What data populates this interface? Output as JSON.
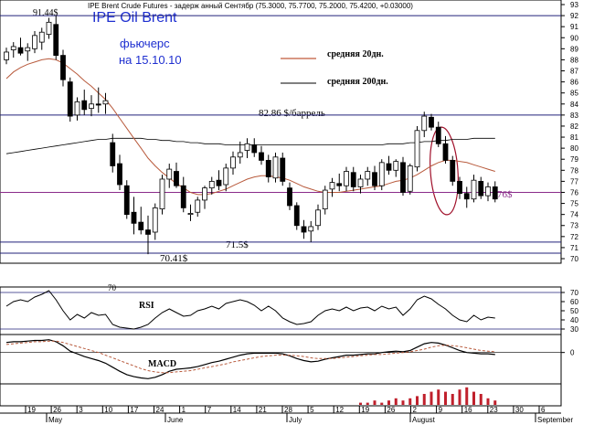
{
  "header": {
    "small": "IPE Brent Crude Futures - задерж анный Сентябр (75.3000, 75.7700, 75.2000, 75.4200, +0.03000)",
    "big": "IPE Oil Brent",
    "sub1": "фьючерс",
    "sub2": "на 15.10.10"
  },
  "legend": {
    "ma20": "средняя 20дн.",
    "ma200": "средняя 200дн."
  },
  "annotations": {
    "a1": "91.44$",
    "a2": "82.86 $/баррель",
    "a3": "76$",
    "a4": "71.5$",
    "a5": "70.41$",
    "a6": "70"
  },
  "colors": {
    "candle": "#000000",
    "ma20": "#b85a3c",
    "ma200": "#000000",
    "level_navy": "#22207a",
    "level_purple": "#8a2c8a",
    "ellipse": "#a0102a",
    "big_title": "#1e2fd0",
    "legend_line": "#c05a3a",
    "volume": "#c0202c"
  },
  "chart_data": {
    "type": "candlestick",
    "title": "IPE Brent Crude Futures",
    "price_axis": {
      "range": [
        69,
        93
      ],
      "ticks": [
        "93",
        "92",
        "91",
        "90",
        "89",
        "88",
        "87",
        "86",
        "85",
        "84",
        "83",
        "82",
        "81",
        "80",
        "79",
        "78",
        "77",
        "76",
        "75",
        "74",
        "73",
        "72",
        "71",
        "70"
      ]
    },
    "x_tick_labels": [
      "19",
      "26",
      "3",
      "10",
      "17",
      "24",
      "1",
      "7",
      "14",
      "21",
      "28",
      "5",
      "12",
      "19",
      "26",
      "2",
      "9",
      "16",
      "23",
      "30",
      "6"
    ],
    "month_labels": [
      "May",
      "June",
      "July",
      "August",
      "September"
    ],
    "levels": [
      92,
      83,
      76,
      71.5,
      70.5
    ],
    "candles": [
      {
        "o": 88.0,
        "h": 89.1,
        "l": 87.6,
        "c": 88.7
      },
      {
        "o": 88.9,
        "h": 89.6,
        "l": 88.2,
        "c": 89.2
      },
      {
        "o": 89.1,
        "h": 90.0,
        "l": 88.4,
        "c": 88.6
      },
      {
        "o": 88.8,
        "h": 89.5,
        "l": 87.9,
        "c": 89.1
      },
      {
        "o": 89.0,
        "h": 90.6,
        "l": 88.6,
        "c": 90.2
      },
      {
        "o": 89.6,
        "h": 90.9,
        "l": 88.9,
        "c": 90.5
      },
      {
        "o": 90.3,
        "h": 91.8,
        "l": 89.9,
        "c": 91.4
      },
      {
        "o": 91.2,
        "h": 92.0,
        "l": 88.0,
        "c": 88.4
      },
      {
        "o": 88.4,
        "h": 88.9,
        "l": 85.6,
        "c": 86.2
      },
      {
        "o": 86.0,
        "h": 86.4,
        "l": 82.4,
        "c": 82.9
      },
      {
        "o": 83.0,
        "h": 84.6,
        "l": 82.5,
        "c": 84.2
      },
      {
        "o": 84.3,
        "h": 85.3,
        "l": 83.0,
        "c": 83.5
      },
      {
        "o": 83.6,
        "h": 84.8,
        "l": 82.9,
        "c": 84.0
      },
      {
        "o": 84.0,
        "h": 85.5,
        "l": 83.2,
        "c": 83.9
      },
      {
        "o": 84.0,
        "h": 85.0,
        "l": 83.1,
        "c": 84.3
      },
      {
        "o": 80.5,
        "h": 81.3,
        "l": 77.8,
        "c": 78.4
      },
      {
        "o": 78.6,
        "h": 79.4,
        "l": 76.2,
        "c": 76.7
      },
      {
        "o": 76.6,
        "h": 77.1,
        "l": 73.6,
        "c": 74.0
      },
      {
        "o": 74.2,
        "h": 75.6,
        "l": 72.2,
        "c": 73.2
      },
      {
        "o": 73.3,
        "h": 74.7,
        "l": 72.2,
        "c": 72.6
      },
      {
        "o": 72.6,
        "h": 73.9,
        "l": 70.4,
        "c": 72.2
      },
      {
        "o": 72.4,
        "h": 75.0,
        "l": 71.7,
        "c": 74.6
      },
      {
        "o": 74.5,
        "h": 77.6,
        "l": 74.0,
        "c": 77.2
      },
      {
        "o": 77.2,
        "h": 78.6,
        "l": 76.4,
        "c": 78.1
      },
      {
        "o": 77.9,
        "h": 78.7,
        "l": 76.4,
        "c": 76.6
      },
      {
        "o": 76.6,
        "h": 77.4,
        "l": 74.2,
        "c": 74.6
      },
      {
        "o": 74.0,
        "h": 74.9,
        "l": 73.4,
        "c": 74.1
      },
      {
        "o": 74.2,
        "h": 75.6,
        "l": 73.8,
        "c": 75.3
      },
      {
        "o": 75.3,
        "h": 76.6,
        "l": 74.5,
        "c": 76.4
      },
      {
        "o": 76.4,
        "h": 77.4,
        "l": 75.8,
        "c": 77.0
      },
      {
        "o": 77.1,
        "h": 78.0,
        "l": 76.2,
        "c": 76.6
      },
      {
        "o": 76.7,
        "h": 78.6,
        "l": 76.1,
        "c": 78.2
      },
      {
        "o": 78.2,
        "h": 79.7,
        "l": 77.6,
        "c": 79.2
      },
      {
        "o": 79.2,
        "h": 80.6,
        "l": 78.6,
        "c": 79.6
      },
      {
        "o": 79.8,
        "h": 80.9,
        "l": 79.1,
        "c": 80.4
      },
      {
        "o": 80.3,
        "h": 80.9,
        "l": 79.2,
        "c": 79.6
      },
      {
        "o": 79.6,
        "h": 80.2,
        "l": 78.5,
        "c": 78.9
      },
      {
        "o": 78.9,
        "h": 79.4,
        "l": 76.9,
        "c": 77.4
      },
      {
        "o": 77.3,
        "h": 79.6,
        "l": 76.9,
        "c": 79.2
      },
      {
        "o": 79.1,
        "h": 79.6,
        "l": 76.6,
        "c": 77.0
      },
      {
        "o": 76.4,
        "h": 76.9,
        "l": 74.4,
        "c": 74.8
      },
      {
        "o": 74.8,
        "h": 75.1,
        "l": 72.6,
        "c": 73.0
      },
      {
        "o": 72.9,
        "h": 73.5,
        "l": 71.8,
        "c": 72.4
      },
      {
        "o": 72.5,
        "h": 73.4,
        "l": 71.5,
        "c": 72.9
      },
      {
        "o": 73.0,
        "h": 74.9,
        "l": 72.6,
        "c": 74.4
      },
      {
        "o": 74.5,
        "h": 76.6,
        "l": 74.0,
        "c": 76.2
      },
      {
        "o": 76.3,
        "h": 77.3,
        "l": 75.6,
        "c": 76.9
      },
      {
        "o": 76.8,
        "h": 77.7,
        "l": 76.1,
        "c": 76.6
      },
      {
        "o": 76.6,
        "h": 78.3,
        "l": 76.1,
        "c": 77.9
      },
      {
        "o": 77.8,
        "h": 78.3,
        "l": 76.1,
        "c": 76.5
      },
      {
        "o": 76.5,
        "h": 77.6,
        "l": 75.9,
        "c": 77.2
      },
      {
        "o": 77.2,
        "h": 78.3,
        "l": 76.6,
        "c": 77.9
      },
      {
        "o": 77.8,
        "h": 78.4,
        "l": 76.2,
        "c": 76.6
      },
      {
        "o": 76.6,
        "h": 79.0,
        "l": 76.2,
        "c": 78.7
      },
      {
        "o": 78.6,
        "h": 79.3,
        "l": 77.6,
        "c": 78.0
      },
      {
        "o": 78.0,
        "h": 79.0,
        "l": 77.4,
        "c": 78.8
      },
      {
        "o": 78.7,
        "h": 79.2,
        "l": 75.7,
        "c": 76.0
      },
      {
        "o": 76.1,
        "h": 78.6,
        "l": 75.8,
        "c": 78.4
      },
      {
        "o": 78.3,
        "h": 82.0,
        "l": 77.9,
        "c": 81.6
      },
      {
        "o": 81.6,
        "h": 83.3,
        "l": 81.0,
        "c": 82.9
      },
      {
        "o": 82.8,
        "h": 83.1,
        "l": 81.6,
        "c": 81.9
      },
      {
        "o": 81.9,
        "h": 82.4,
        "l": 80.1,
        "c": 80.4
      },
      {
        "o": 80.4,
        "h": 81.1,
        "l": 78.6,
        "c": 78.9
      },
      {
        "o": 78.9,
        "h": 79.3,
        "l": 76.6,
        "c": 77.0
      },
      {
        "o": 77.0,
        "h": 77.4,
        "l": 75.4,
        "c": 75.9
      },
      {
        "o": 75.9,
        "h": 76.5,
        "l": 74.6,
        "c": 75.4
      },
      {
        "o": 75.4,
        "h": 77.6,
        "l": 75.1,
        "c": 77.1
      },
      {
        "o": 77.0,
        "h": 77.4,
        "l": 75.4,
        "c": 75.7
      },
      {
        "o": 75.7,
        "h": 76.9,
        "l": 75.2,
        "c": 76.5
      },
      {
        "o": 76.5,
        "h": 77.0,
        "l": 75.1,
        "c": 75.4
      }
    ],
    "ma20": [
      86.3,
      86.9,
      87.3,
      87.6,
      87.8,
      88.0,
      88.1,
      88.0,
      87.7,
      87.2,
      86.7,
      86.1,
      85.6,
      85.0,
      84.4,
      83.6,
      82.7,
      81.8,
      80.9,
      80.0,
      79.1,
      78.4,
      77.8,
      77.3,
      76.8,
      76.4,
      76.0,
      75.8,
      75.8,
      75.9,
      76.1,
      76.3,
      76.6,
      76.9,
      77.2,
      77.4,
      77.5,
      77.5,
      77.4,
      77.3,
      77.1,
      76.8,
      76.5,
      76.3,
      76.1,
      76.0,
      76.0,
      76.0,
      76.1,
      76.2,
      76.3,
      76.4,
      76.5,
      76.6,
      76.8,
      77.0,
      77.1,
      77.3,
      77.6,
      78.0,
      78.4,
      78.7,
      78.9,
      78.9,
      78.8,
      78.7,
      78.5,
      78.3,
      78.1,
      77.9
    ],
    "ma200": [
      79.5,
      79.6,
      79.7,
      79.8,
      79.9,
      80.0,
      80.1,
      80.2,
      80.3,
      80.4,
      80.5,
      80.6,
      80.7,
      80.8,
      80.8,
      80.9,
      80.9,
      80.9,
      80.9,
      80.9,
      80.8,
      80.8,
      80.7,
      80.7,
      80.6,
      80.6,
      80.5,
      80.5,
      80.4,
      80.4,
      80.4,
      80.3,
      80.3,
      80.3,
      80.3,
      80.3,
      80.3,
      80.3,
      80.3,
      80.3,
      80.3,
      80.3,
      80.3,
      80.3,
      80.3,
      80.3,
      80.3,
      80.3,
      80.3,
      80.3,
      80.3,
      80.3,
      80.3,
      80.3,
      80.4,
      80.4,
      80.4,
      80.5,
      80.5,
      80.6,
      80.6,
      80.7,
      80.7,
      80.8,
      80.8,
      80.8,
      80.9,
      80.9,
      80.9,
      80.9
    ],
    "rsi": {
      "label": "RSI",
      "ticks": [
        "70",
        "60",
        "50",
        "40",
        "30"
      ],
      "values": [
        55,
        60,
        62,
        60,
        65,
        68,
        72,
        62,
        50,
        40,
        46,
        42,
        48,
        45,
        46,
        35,
        32,
        31,
        30,
        32,
        35,
        42,
        48,
        52,
        48,
        44,
        45,
        50,
        52,
        55,
        52,
        58,
        60,
        62,
        60,
        56,
        50,
        55,
        50,
        42,
        38,
        35,
        36,
        38,
        45,
        50,
        52,
        50,
        54,
        50,
        53,
        54,
        50,
        55,
        52,
        54,
        45,
        52,
        62,
        66,
        63,
        57,
        52,
        45,
        40,
        38,
        45,
        40,
        43,
        42
      ]
    },
    "macd": {
      "label": "MACD",
      "ticks": [
        "0"
      ],
      "range": [
        -4,
        2
      ],
      "macd": [
        1.5,
        1.6,
        1.6,
        1.7,
        1.8,
        1.8,
        1.9,
        1.6,
        1.0,
        0.2,
        -0.2,
        -0.6,
        -0.9,
        -1.2,
        -1.6,
        -2.2,
        -2.8,
        -3.3,
        -3.6,
        -3.8,
        -3.9,
        -3.7,
        -3.3,
        -2.8,
        -2.5,
        -2.4,
        -2.3,
        -2.1,
        -1.8,
        -1.5,
        -1.3,
        -1.0,
        -0.7,
        -0.4,
        -0.2,
        -0.1,
        -0.1,
        -0.1,
        -0.1,
        -0.2,
        -0.5,
        -0.9,
        -1.2,
        -1.4,
        -1.3,
        -1.0,
        -0.8,
        -0.6,
        -0.4,
        -0.4,
        -0.3,
        -0.2,
        -0.2,
        0.0,
        0.1,
        0.2,
        0.1,
        0.3,
        0.8,
        1.3,
        1.5,
        1.4,
        1.1,
        0.7,
        0.3,
        0.0,
        -0.1,
        -0.2,
        -0.2,
        -0.3
      ],
      "signal": [
        1.2,
        1.3,
        1.4,
        1.5,
        1.6,
        1.6,
        1.7,
        1.7,
        1.5,
        1.2,
        0.9,
        0.6,
        0.3,
        0.0,
        -0.4,
        -0.8,
        -1.2,
        -1.6,
        -2.0,
        -2.4,
        -2.7,
        -2.9,
        -3.0,
        -3.0,
        -2.9,
        -2.8,
        -2.7,
        -2.5,
        -2.3,
        -2.1,
        -1.9,
        -1.7,
        -1.4,
        -1.2,
        -1.0,
        -0.8,
        -0.6,
        -0.5,
        -0.4,
        -0.4,
        -0.4,
        -0.5,
        -0.6,
        -0.8,
        -0.9,
        -0.9,
        -0.9,
        -0.8,
        -0.7,
        -0.6,
        -0.5,
        -0.4,
        -0.3,
        -0.3,
        -0.2,
        -0.1,
        0.0,
        0.1,
        0.3,
        0.5,
        0.8,
        1.0,
        1.1,
        1.0,
        0.9,
        0.7,
        0.5,
        0.3,
        0.2,
        0.1
      ]
    },
    "volume": [
      0,
      0,
      0,
      0,
      0,
      0,
      0,
      0,
      0,
      0,
      0,
      0,
      0,
      0,
      0,
      0,
      0,
      0,
      0,
      0,
      0,
      0,
      0,
      0,
      0,
      0,
      0,
      0,
      0,
      0,
      0,
      0,
      0,
      0,
      0,
      0,
      0,
      0,
      0,
      0,
      0,
      0,
      0,
      0,
      0,
      0,
      0,
      0,
      0,
      0,
      1,
      1,
      2,
      1,
      2,
      3,
      2,
      3,
      4,
      5,
      6,
      7,
      6,
      5,
      7,
      8,
      6,
      5,
      3,
      2
    ]
  }
}
